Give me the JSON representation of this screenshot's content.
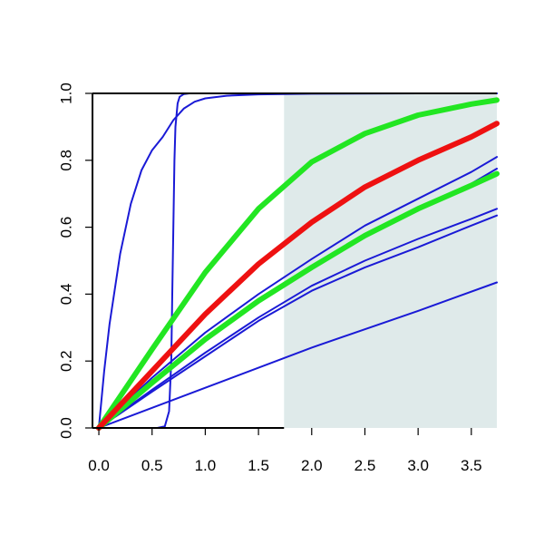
{
  "chart_data": {
    "type": "line",
    "title": "",
    "xlabel": "",
    "ylabel": "",
    "xlim": [
      -0.06,
      3.74
    ],
    "ylim": [
      0.0,
      1.0
    ],
    "x_ticks": [
      "0.0",
      "0.5",
      "1.0",
      "1.5",
      "2.0",
      "2.5",
      "3.0",
      "3.5"
    ],
    "y_ticks": [
      "0.0",
      "0.2",
      "0.4",
      "0.6",
      "0.8",
      "1.0"
    ],
    "shaded_region": {
      "x_from": 1.74,
      "x_to": 3.74,
      "color": "#dfeaea"
    },
    "grid": false,
    "colors": {
      "blue": "#1a1ad6",
      "green": "#22e622",
      "red": "#ee1111"
    },
    "series": [
      {
        "color": "blue",
        "width": 2,
        "x": [
          0,
          0.05,
          0.1,
          0.2,
          0.3,
          0.4,
          0.5,
          0.6,
          0.7,
          0.8,
          0.9,
          1.0,
          1.2,
          1.5,
          2.0,
          3.0,
          3.74
        ],
        "y": [
          0,
          0.17,
          0.31,
          0.52,
          0.67,
          0.77,
          0.83,
          0.87,
          0.92,
          0.955,
          0.975,
          0.985,
          0.993,
          0.997,
          0.999,
          1.0,
          1.0
        ]
      },
      {
        "color": "blue",
        "width": 2,
        "x": [
          0,
          0.55,
          0.62,
          0.66,
          0.68,
          0.69,
          0.7,
          0.71,
          0.72,
          0.74,
          0.76,
          0.8,
          0.85,
          1.0,
          3.74
        ],
        "y": [
          0,
          0.0,
          0.005,
          0.05,
          0.2,
          0.4,
          0.6,
          0.8,
          0.9,
          0.97,
          0.99,
          0.998,
          1.0,
          1.0,
          1.0
        ]
      },
      {
        "color": "blue",
        "width": 2,
        "x": [
          0,
          1.0,
          2.0,
          3.0,
          3.74
        ],
        "y": [
          0,
          0.12,
          0.24,
          0.35,
          0.435
        ]
      },
      {
        "color": "blue",
        "width": 2,
        "x": [
          0,
          0.5,
          1.0,
          1.5,
          2.0,
          2.5,
          3.0,
          3.5,
          3.74
        ],
        "y": [
          0,
          0.108,
          0.214,
          0.32,
          0.41,
          0.48,
          0.54,
          0.605,
          0.635
        ]
      },
      {
        "color": "blue",
        "width": 2,
        "x": [
          0,
          0.5,
          1.0,
          1.5,
          2.0,
          2.5,
          3.0,
          3.5,
          3.74
        ],
        "y": [
          0,
          0.114,
          0.225,
          0.33,
          0.425,
          0.5,
          0.565,
          0.625,
          0.655
        ]
      },
      {
        "color": "blue",
        "width": 2,
        "x": [
          0,
          0.5,
          1.0,
          1.5,
          2.0,
          2.5,
          3.0,
          3.5,
          3.74
        ],
        "y": [
          0,
          0.14,
          0.27,
          0.38,
          0.48,
          0.57,
          0.655,
          0.73,
          0.775
        ]
      },
      {
        "color": "blue",
        "width": 2,
        "x": [
          0,
          0.5,
          1.0,
          1.5,
          2.0,
          2.5,
          3.0,
          3.5,
          3.74
        ],
        "y": [
          0,
          0.15,
          0.285,
          0.4,
          0.505,
          0.605,
          0.685,
          0.765,
          0.81
        ]
      },
      {
        "color": "green",
        "width": 6,
        "x": [
          0,
          0.5,
          1.0,
          1.5,
          2.0,
          2.5,
          3.0,
          3.5,
          3.74
        ],
        "y": [
          0,
          0.135,
          0.265,
          0.38,
          0.48,
          0.575,
          0.655,
          0.725,
          0.76
        ]
      },
      {
        "color": "green",
        "width": 6,
        "x": [
          0,
          0.5,
          1.0,
          1.5,
          2.0,
          2.5,
          3.0,
          3.5,
          3.74
        ],
        "y": [
          0,
          0.235,
          0.465,
          0.655,
          0.795,
          0.88,
          0.935,
          0.968,
          0.98
        ]
      },
      {
        "color": "red",
        "width": 6,
        "x": [
          0,
          0.5,
          1.0,
          1.5,
          2.0,
          2.5,
          3.0,
          3.5,
          3.74
        ],
        "y": [
          0,
          0.17,
          0.34,
          0.49,
          0.615,
          0.72,
          0.8,
          0.87,
          0.91
        ]
      }
    ]
  }
}
